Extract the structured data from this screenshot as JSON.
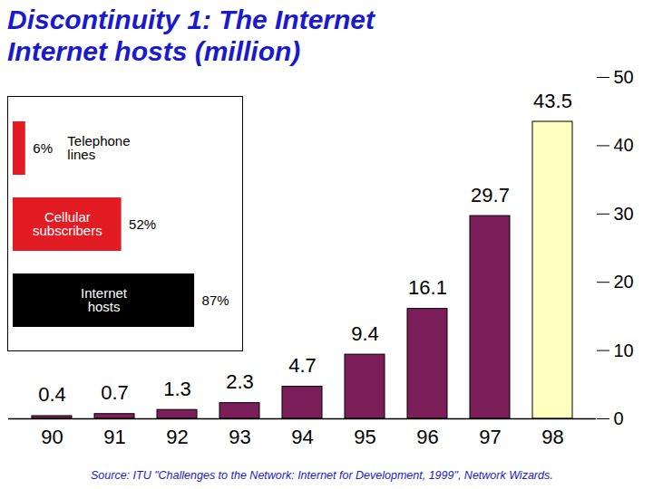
{
  "chart_data": [
    {
      "type": "bar",
      "title": "Discontinuity 1: The Internet",
      "subtitle": "Internet hosts (million)",
      "caption": "Source:  ITU \"Challenges to the Network: Internet for Development, 1999\", Network Wizards.",
      "categories": [
        "90",
        "91",
        "92",
        "93",
        "94",
        "95",
        "96",
        "97",
        "98"
      ],
      "values": [
        0.4,
        0.7,
        1.3,
        2.3,
        4.7,
        9.4,
        16.1,
        29.7,
        43.5
      ],
      "colors": [
        "#7b1e5a",
        "#7b1e5a",
        "#7b1e5a",
        "#7b1e5a",
        "#7b1e5a",
        "#7b1e5a",
        "#7b1e5a",
        "#7b1e5a",
        "#ffffc0"
      ],
      "ylim": [
        0,
        50
      ],
      "yticks": [
        0,
        10,
        20,
        30,
        40,
        50
      ],
      "data_labels": true
    },
    {
      "type": "bar",
      "orientation": "horizontal",
      "categories": [
        "Telephone lines",
        "Cellular subscribers",
        "Internet hosts"
      ],
      "values": [
        6,
        52,
        87
      ],
      "value_labels": [
        "6%",
        "52%",
        "87%"
      ],
      "colors": [
        "#e31b23",
        "#e31b23",
        "#000000"
      ],
      "xlim": [
        0,
        100
      ],
      "tick_labels": false,
      "data_labels": true
    }
  ]
}
